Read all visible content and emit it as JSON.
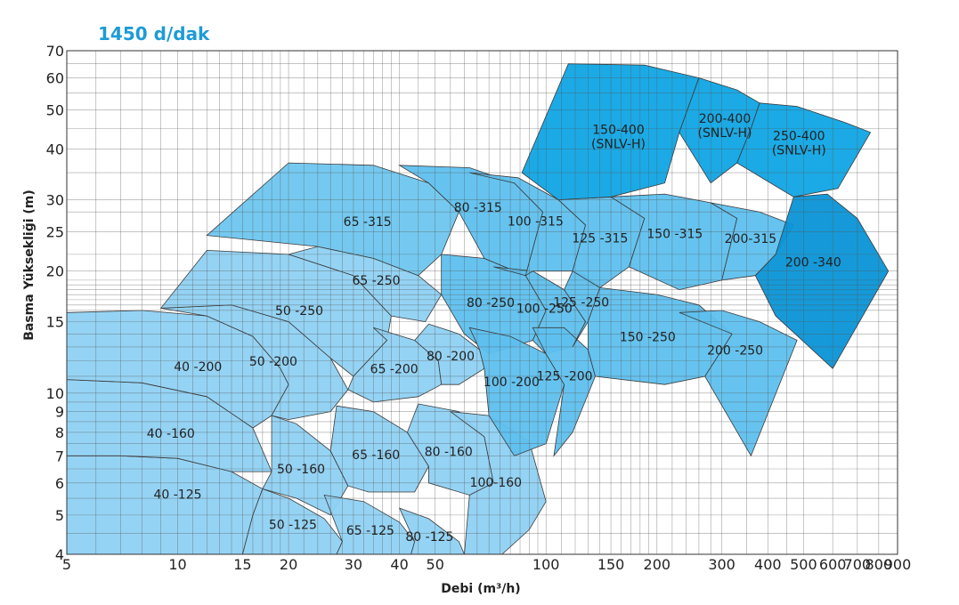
{
  "title": "1450  d/dak",
  "chart_data": {
    "type": "area",
    "title": "1450  d/dak",
    "xlabel": "Debi (m³/h)",
    "ylabel": "Basma Yüksekliği (m)",
    "x_scale": "log",
    "y_scale": "log",
    "xlim": [
      5,
      900
    ],
    "ylim": [
      4,
      70
    ],
    "x_ticks": [
      "5",
      "10",
      "15",
      "20",
      "30",
      "40",
      "50",
      "100",
      "150",
      "200",
      "300",
      "400",
      "500",
      "600",
      "700",
      "800",
      "900"
    ],
    "y_ticks": [
      "4",
      "5",
      "6",
      "7",
      "8",
      "9",
      "10",
      "15",
      "20",
      "25",
      "30",
      "40",
      "50",
      "60",
      "70"
    ],
    "grid": true,
    "series": [
      {
        "name": "40 -125",
        "color": "#8fd1f3",
        "polygon": [
          [
            5,
            7.0
          ],
          [
            7,
            7.0
          ],
          [
            10,
            6.9
          ],
          [
            14,
            6.4
          ],
          [
            17,
            5.8
          ],
          [
            16,
            5.0
          ],
          [
            15,
            4.0
          ],
          [
            5,
            4.0
          ]
        ]
      },
      {
        "name": "40 -160",
        "color": "#8fd1f3",
        "polygon": [
          [
            5,
            10.8
          ],
          [
            8,
            10.6
          ],
          [
            12,
            9.8
          ],
          [
            16,
            8.2
          ],
          [
            18,
            6.4
          ],
          [
            14,
            6.4
          ],
          [
            10,
            6.9
          ],
          [
            7,
            7.0
          ],
          [
            5,
            7.0
          ]
        ]
      },
      {
        "name": "40 -200",
        "color": "#8fd1f3",
        "polygon": [
          [
            5,
            15.8
          ],
          [
            8,
            16.0
          ],
          [
            12,
            15.5
          ],
          [
            16,
            13.8
          ],
          [
            19,
            11.5
          ],
          [
            20,
            10.5
          ],
          [
            18,
            8.8
          ],
          [
            16,
            8.2
          ],
          [
            12,
            9.8
          ],
          [
            8,
            10.6
          ],
          [
            5,
            10.8
          ]
        ]
      },
      {
        "name": "50 -125",
        "color": "#8fd1f3",
        "polygon": [
          [
            17,
            5.8
          ],
          [
            20,
            5.5
          ],
          [
            25,
            4.9
          ],
          [
            28,
            4.3
          ],
          [
            27,
            4.0
          ],
          [
            15,
            4.0
          ],
          [
            16,
            5.0
          ]
        ]
      },
      {
        "name": "50 -160",
        "color": "#8fd1f3",
        "polygon": [
          [
            18,
            8.8
          ],
          [
            21,
            8.4
          ],
          [
            26,
            7.2
          ],
          [
            29,
            5.9
          ],
          [
            26,
            5.0
          ],
          [
            21,
            5.5
          ],
          [
            17,
            5.8
          ],
          [
            18,
            6.4
          ]
        ]
      },
      {
        "name": "50 -200",
        "color": "#8fd1f3",
        "polygon": [
          [
            9,
            16.2
          ],
          [
            14,
            16.5
          ],
          [
            20,
            15.0
          ],
          [
            26,
            12.2
          ],
          [
            29,
            10.2
          ],
          [
            26,
            9.0
          ],
          [
            20,
            8.6
          ],
          [
            18,
            8.8
          ],
          [
            20,
            10.5
          ],
          [
            19,
            11.5
          ],
          [
            16,
            13.8
          ],
          [
            12,
            15.5
          ]
        ]
      },
      {
        "name": "50 -250",
        "color": "#8fd1f3",
        "polygon": [
          [
            12,
            22.5
          ],
          [
            20,
            22.0
          ],
          [
            30,
            19.5
          ],
          [
            38,
            15.5
          ],
          [
            37,
            13.5
          ],
          [
            30,
            11.0
          ],
          [
            26,
            12.2
          ],
          [
            20,
            15.0
          ],
          [
            14,
            16.5
          ],
          [
            9,
            16.2
          ]
        ]
      },
      {
        "name": "65 -125",
        "color": "#8fd1f3",
        "polygon": [
          [
            25,
            5.6
          ],
          [
            32,
            5.4
          ],
          [
            40,
            4.8
          ],
          [
            44,
            4.3
          ],
          [
            43,
            4.0
          ],
          [
            27,
            4.0
          ],
          [
            28,
            4.3
          ]
        ]
      },
      {
        "name": "65 -160",
        "color": "#8fd1f3",
        "polygon": [
          [
            27,
            9.3
          ],
          [
            34,
            9.0
          ],
          [
            42,
            8.0
          ],
          [
            48,
            6.6
          ],
          [
            44,
            5.7
          ],
          [
            33,
            5.7
          ],
          [
            29,
            5.9
          ],
          [
            26,
            7.2
          ]
        ]
      },
      {
        "name": "65 -200",
        "color": "#8fd1f3",
        "polygon": [
          [
            34,
            14.5
          ],
          [
            44,
            13.5
          ],
          [
            51,
            12.0
          ],
          [
            52,
            10.5
          ],
          [
            45,
            9.8
          ],
          [
            34,
            9.5
          ],
          [
            29,
            10.2
          ],
          [
            30,
            11.0
          ],
          [
            37,
            13.5
          ]
        ]
      },
      {
        "name": "65 -250",
        "color": "#8fd1f3",
        "polygon": [
          [
            24,
            23.0
          ],
          [
            34,
            21.5
          ],
          [
            45,
            19.5
          ],
          [
            52,
            17.5
          ],
          [
            47,
            15.0
          ],
          [
            38,
            15.5
          ],
          [
            30,
            19.5
          ],
          [
            20,
            22.0
          ]
        ]
      },
      {
        "name": "80 -125",
        "color": "#8fd1f3",
        "polygon": [
          [
            40,
            5.2
          ],
          [
            48,
            4.9
          ],
          [
            58,
            4.3
          ],
          [
            60,
            4.0
          ],
          [
            43,
            4.0
          ],
          [
            44,
            4.3
          ]
        ]
      },
      {
        "name": "80 -160",
        "color": "#8fd1f3",
        "polygon": [
          [
            45,
            9.4
          ],
          [
            58,
            9.0
          ],
          [
            68,
            7.8
          ],
          [
            72,
            6.0
          ],
          [
            62,
            5.6
          ],
          [
            48,
            6.0
          ],
          [
            48,
            6.6
          ],
          [
            42,
            8.0
          ]
        ]
      },
      {
        "name": "80 -200",
        "color": "#8fd1f3",
        "polygon": [
          [
            48,
            14.8
          ],
          [
            58,
            14.0
          ],
          [
            66,
            12.8
          ],
          [
            68,
            11.5
          ],
          [
            58,
            10.5
          ],
          [
            52,
            10.5
          ],
          [
            51,
            12.0
          ],
          [
            44,
            13.5
          ]
        ]
      },
      {
        "name": "100-160",
        "color": "#8fd1f3",
        "polygon": [
          [
            55,
            9.0
          ],
          [
            70,
            8.8
          ],
          [
            90,
            7.6
          ],
          [
            100,
            5.4
          ],
          [
            90,
            4.6
          ],
          [
            76,
            4.0
          ],
          [
            60,
            4.0
          ],
          [
            62,
            5.6
          ],
          [
            72,
            6.0
          ],
          [
            68,
            7.8
          ]
        ]
      },
      {
        "name": "65 -315",
        "color": "#6ec6ef",
        "polygon": [
          [
            12,
            24.5
          ],
          [
            20,
            37.0
          ],
          [
            34,
            36.5
          ],
          [
            48,
            33.0
          ],
          [
            58,
            28.0
          ],
          [
            52,
            22.0
          ],
          [
            45,
            19.5
          ],
          [
            34,
            21.5
          ],
          [
            24,
            23.0
          ]
        ]
      },
      {
        "name": "80 -250",
        "color": "#5ec0ee",
        "polygon": [
          [
            52,
            22.0
          ],
          [
            68,
            21.5
          ],
          [
            88,
            19.5
          ],
          [
            100,
            16.0
          ],
          [
            92,
            13.5
          ],
          [
            70,
            12.5
          ],
          [
            60,
            14.0
          ],
          [
            52,
            17.5
          ]
        ]
      },
      {
        "name": "80 -315",
        "color": "#5ec0ee",
        "polygon": [
          [
            40,
            36.5
          ],
          [
            62,
            36.0
          ],
          [
            82,
            33.0
          ],
          [
            98,
            28.0
          ],
          [
            88,
            19.5
          ],
          [
            68,
            21.5
          ],
          [
            58,
            28.0
          ],
          [
            48,
            33.0
          ]
        ]
      },
      {
        "name": "100 -200",
        "color": "#5ec0ee",
        "polygon": [
          [
            62,
            14.5
          ],
          [
            80,
            13.8
          ],
          [
            100,
            12.5
          ],
          [
            112,
            10.5
          ],
          [
            100,
            7.5
          ],
          [
            82,
            7.0
          ],
          [
            70,
            8.8
          ],
          [
            68,
            11.5
          ],
          [
            66,
            12.8
          ]
        ]
      },
      {
        "name": "100 -250",
        "color": "#5ec0ee",
        "polygon": [
          [
            72,
            20.5
          ],
          [
            92,
            20.0
          ],
          [
            112,
            18.0
          ],
          [
            128,
            15.0
          ],
          [
            118,
            13.0
          ],
          [
            100,
            12.5
          ],
          [
            92,
            13.5
          ],
          [
            100,
            16.0
          ],
          [
            88,
            19.5
          ]
        ]
      },
      {
        "name": "100 -315",
        "color": "#5ec0ee",
        "polygon": [
          [
            62,
            35.0
          ],
          [
            84,
            34.0
          ],
          [
            108,
            30.0
          ],
          [
            128,
            26.0
          ],
          [
            118,
            20.0
          ],
          [
            92,
            20.0
          ],
          [
            88,
            19.5
          ],
          [
            98,
            28.0
          ],
          [
            82,
            33.0
          ]
        ]
      },
      {
        "name": "125 -200",
        "color": "#5ec0ee",
        "polygon": [
          [
            92,
            14.5
          ],
          [
            112,
            14.5
          ],
          [
            130,
            12.8
          ],
          [
            136,
            11.0
          ],
          [
            118,
            8.0
          ],
          [
            105,
            7.0
          ],
          [
            112,
            10.5
          ],
          [
            100,
            12.5
          ]
        ]
      },
      {
        "name": "125 -250",
        "color": "#5ec0ee",
        "polygon": [
          [
            118,
            20.0
          ],
          [
            128,
            19.5
          ],
          [
            140,
            18.2
          ],
          [
            130,
            15.0
          ],
          [
            118,
            13.0
          ],
          [
            128,
            15.0
          ],
          [
            112,
            18.0
          ]
        ]
      },
      {
        "name": "125 -315",
        "color": "#5ec0ee",
        "polygon": [
          [
            108,
            30.0
          ],
          [
            150,
            30.5
          ],
          [
            185,
            27.0
          ],
          [
            168,
            20.5
          ],
          [
            140,
            18.2
          ],
          [
            118,
            20.0
          ],
          [
            128,
            26.0
          ]
        ]
      },
      {
        "name": "150 -250",
        "color": "#5ec0ee",
        "polygon": [
          [
            140,
            18.2
          ],
          [
            200,
            17.5
          ],
          [
            260,
            16.5
          ],
          [
            320,
            14.0
          ],
          [
            270,
            11.0
          ],
          [
            210,
            10.5
          ],
          [
            136,
            11.0
          ],
          [
            130,
            12.8
          ],
          [
            130,
            15.0
          ]
        ]
      },
      {
        "name": "150 -315",
        "color": "#5ec0ee",
        "polygon": [
          [
            150,
            30.5
          ],
          [
            210,
            31.0
          ],
          [
            280,
            29.5
          ],
          [
            330,
            27.0
          ],
          [
            300,
            19.0
          ],
          [
            230,
            18.0
          ],
          [
            168,
            20.5
          ],
          [
            185,
            27.0
          ]
        ]
      },
      {
        "name": "200 -250",
        "color": "#5ec0ee",
        "polygon": [
          [
            230,
            15.8
          ],
          [
            300,
            16.0
          ],
          [
            380,
            15.0
          ],
          [
            480,
            13.5
          ],
          [
            360,
            7.0
          ],
          [
            270,
            11.0
          ],
          [
            320,
            14.0
          ]
        ]
      },
      {
        "name": "200-315",
        "color": "#5ec0ee",
        "polygon": [
          [
            280,
            29.5
          ],
          [
            380,
            28.0
          ],
          [
            470,
            26.0
          ],
          [
            420,
            22.0
          ],
          [
            370,
            19.5
          ],
          [
            300,
            19.0
          ],
          [
            330,
            27.0
          ]
        ]
      },
      {
        "name": "150-400 (SNLV-H)",
        "color": "#0fa5e4",
        "polygon": [
          [
            86,
            35.0
          ],
          [
            115,
            65.0
          ],
          [
            185,
            64.5
          ],
          [
            260,
            60.0
          ],
          [
            230,
            44.0
          ],
          [
            210,
            33.0
          ],
          [
            150,
            30.5
          ],
          [
            108,
            30.0
          ]
        ]
      },
      {
        "name": "200-400 (SNLV-H)",
        "color": "#0fa5e4",
        "polygon": [
          [
            260,
            60.0
          ],
          [
            330,
            56.0
          ],
          [
            380,
            52.0
          ],
          [
            360,
            45.0
          ],
          [
            330,
            37.0
          ],
          [
            280,
            33.0
          ],
          [
            230,
            44.0
          ]
        ]
      },
      {
        "name": "250-400 (SNLV-H)",
        "color": "#0fa5e4",
        "polygon": [
          [
            380,
            52.0
          ],
          [
            480,
            51.0
          ],
          [
            650,
            46.5
          ],
          [
            760,
            44.0
          ],
          [
            620,
            32.0
          ],
          [
            470,
            30.5
          ],
          [
            330,
            37.0
          ],
          [
            360,
            45.0
          ]
        ]
      },
      {
        "name": "200 -340",
        "color": "#0a93d6",
        "polygon": [
          [
            470,
            30.5
          ],
          [
            580,
            31.0
          ],
          [
            700,
            27.0
          ],
          [
            850,
            20.0
          ],
          [
            600,
            11.5
          ],
          [
            420,
            15.5
          ],
          [
            370,
            19.5
          ],
          [
            420,
            22.0
          ]
        ]
      }
    ]
  }
}
